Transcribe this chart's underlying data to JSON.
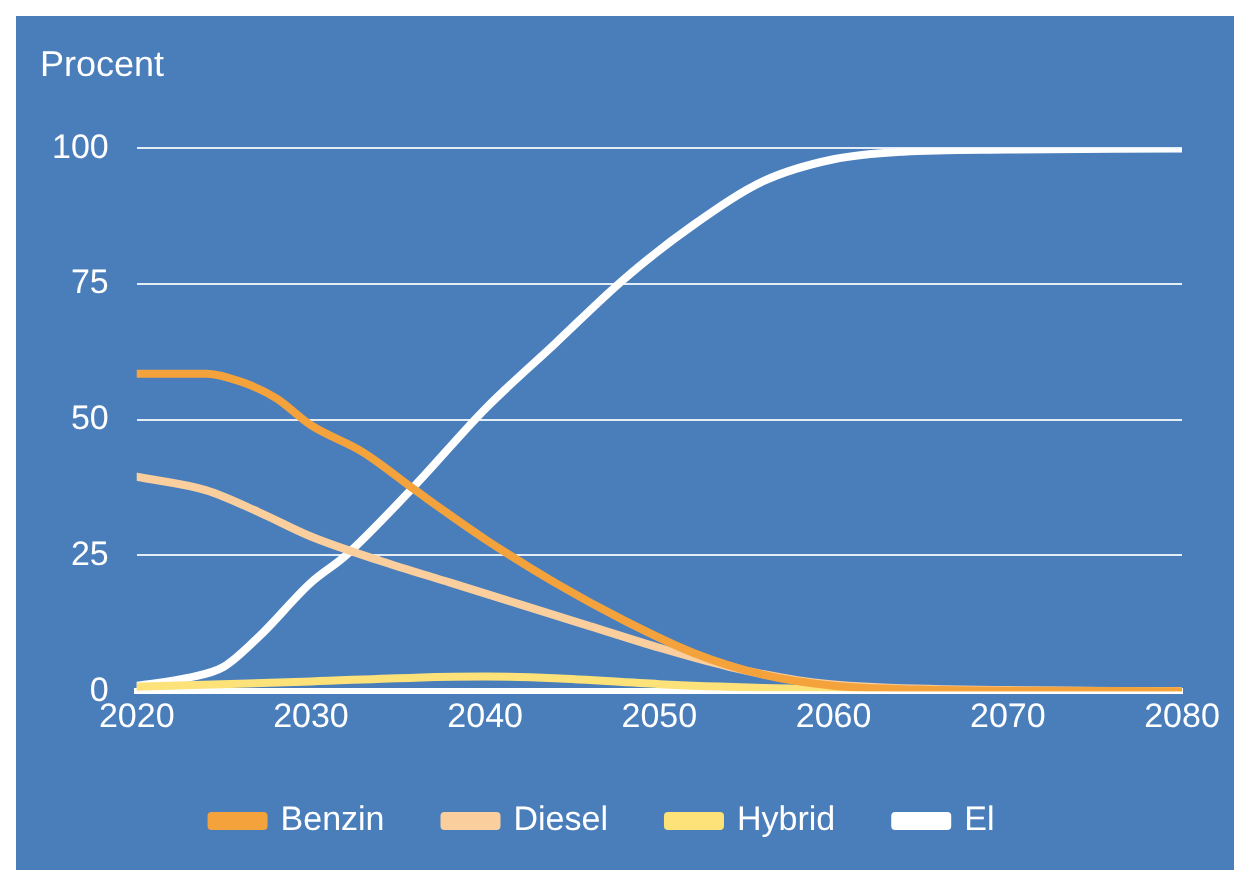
{
  "chart_data": {
    "type": "line",
    "ylabel": "Procent",
    "xlim": [
      2020,
      2080
    ],
    "xticks": [
      2020,
      2030,
      2040,
      2050,
      2060,
      2070,
      2080
    ],
    "ylim": [
      0,
      100
    ],
    "yticks": [
      0,
      25,
      50,
      75,
      100
    ],
    "grid": "y",
    "legend": "bottom",
    "series": [
      {
        "name": "Benzin",
        "color": "#f4a23c",
        "x": [
          2020,
          2024,
          2026,
          2028,
          2030,
          2033,
          2036,
          2040,
          2044,
          2048,
          2052,
          2056,
          2060,
          2065,
          2070,
          2080
        ],
        "values": [
          58.5,
          58.5,
          57,
          54,
          49,
          44,
          37,
          28,
          20,
          13,
          7,
          3,
          1,
          0.3,
          0.1,
          0
        ]
      },
      {
        "name": "Diesel",
        "color": "#fbcf9d",
        "x": [
          2020,
          2024,
          2027,
          2030,
          2034,
          2038,
          2042,
          2046,
          2050,
          2054,
          2058,
          2062,
          2070,
          2080
        ],
        "values": [
          39.5,
          37,
          33,
          28.5,
          24,
          20,
          16,
          12,
          8,
          4.5,
          2,
          0.8,
          0.2,
          0
        ]
      },
      {
        "name": "Hybrid",
        "color": "#fde27a",
        "x": [
          2020,
          2030,
          2036,
          2040,
          2044,
          2050,
          2056,
          2060,
          2070,
          2080
        ],
        "values": [
          0.8,
          1.8,
          2.5,
          2.7,
          2.4,
          1.3,
          0.6,
          0.3,
          0.1,
          0
        ]
      },
      {
        "name": "El",
        "color": "#ffffff",
        "x": [
          2020,
          2023,
          2025,
          2027,
          2030,
          2032,
          2036,
          2040,
          2044,
          2048,
          2052,
          2056,
          2060,
          2064,
          2070,
          2080
        ],
        "values": [
          1,
          2.5,
          4.5,
          10,
          20,
          25,
          38,
          52,
          64,
          76,
          86,
          94,
          98,
          99.4,
          99.8,
          100
        ]
      }
    ]
  }
}
